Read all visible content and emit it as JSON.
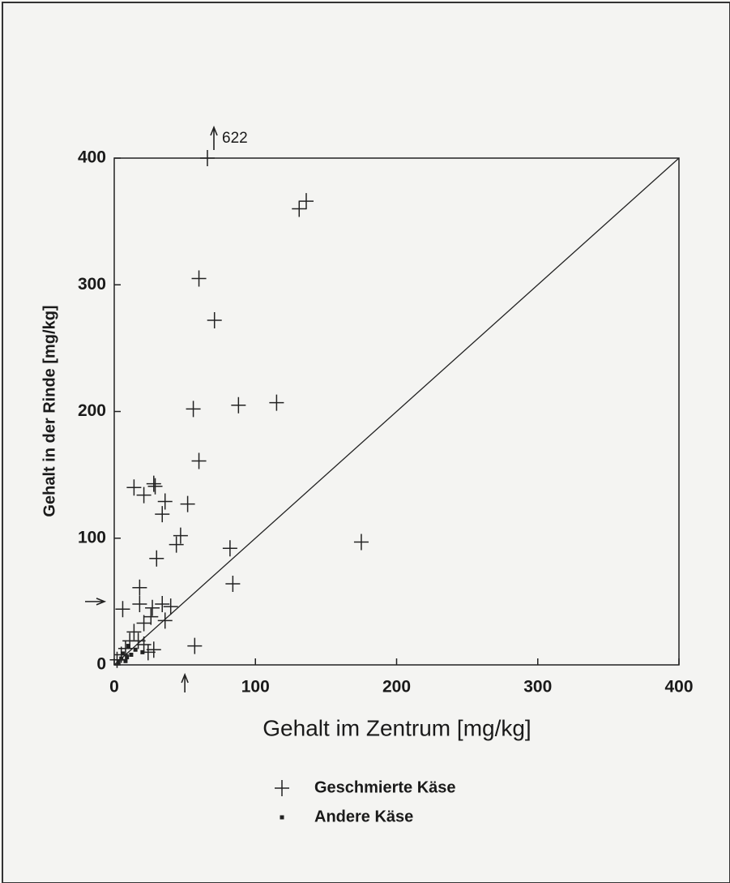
{
  "chart_data": {
    "type": "scatter",
    "xlabel": "Gehalt im Zentrum [mg/kg]",
    "ylabel": "Gehalt in der Rinde [mg/kg]",
    "xlim": [
      0,
      400
    ],
    "ylim": [
      0,
      400
    ],
    "xticks": [
      0,
      100,
      200,
      300,
      400
    ],
    "yticks": [
      0,
      100,
      200,
      300,
      400
    ],
    "diagonal": true,
    "reference_arrows": {
      "x": 50,
      "y": 50
    },
    "annotations": [
      {
        "text": "622",
        "x": 66,
        "y": 400
      }
    ],
    "series": [
      {
        "name": "Geschmierte Käse",
        "marker": "plus",
        "color": "#222222",
        "x": [
          66,
          131,
          136,
          60,
          71,
          88,
          115,
          56,
          60,
          14,
          21,
          28,
          29,
          36,
          34,
          52,
          47,
          44,
          30,
          82,
          84,
          175,
          18,
          6,
          18,
          27,
          34,
          40,
          26,
          36,
          21,
          57,
          28,
          14,
          11,
          8,
          5,
          2,
          17,
          21,
          24
        ],
        "y": [
          400,
          360,
          366,
          305,
          272,
          205,
          207,
          202,
          161,
          140,
          134,
          143,
          141,
          129,
          119,
          127,
          102,
          95,
          84,
          92,
          64,
          97,
          61,
          44,
          48,
          45,
          48,
          46,
          38,
          35,
          33,
          15,
          12,
          26,
          19,
          13,
          8,
          4,
          19,
          16,
          10
        ]
      },
      {
        "name": "Andere Käse",
        "marker": "square",
        "color": "#222222",
        "x": [
          3,
          5,
          8,
          12,
          15,
          10,
          20,
          6,
          9
        ],
        "y": [
          2,
          5,
          3,
          8,
          12,
          15,
          10,
          9,
          6
        ]
      }
    ]
  }
}
